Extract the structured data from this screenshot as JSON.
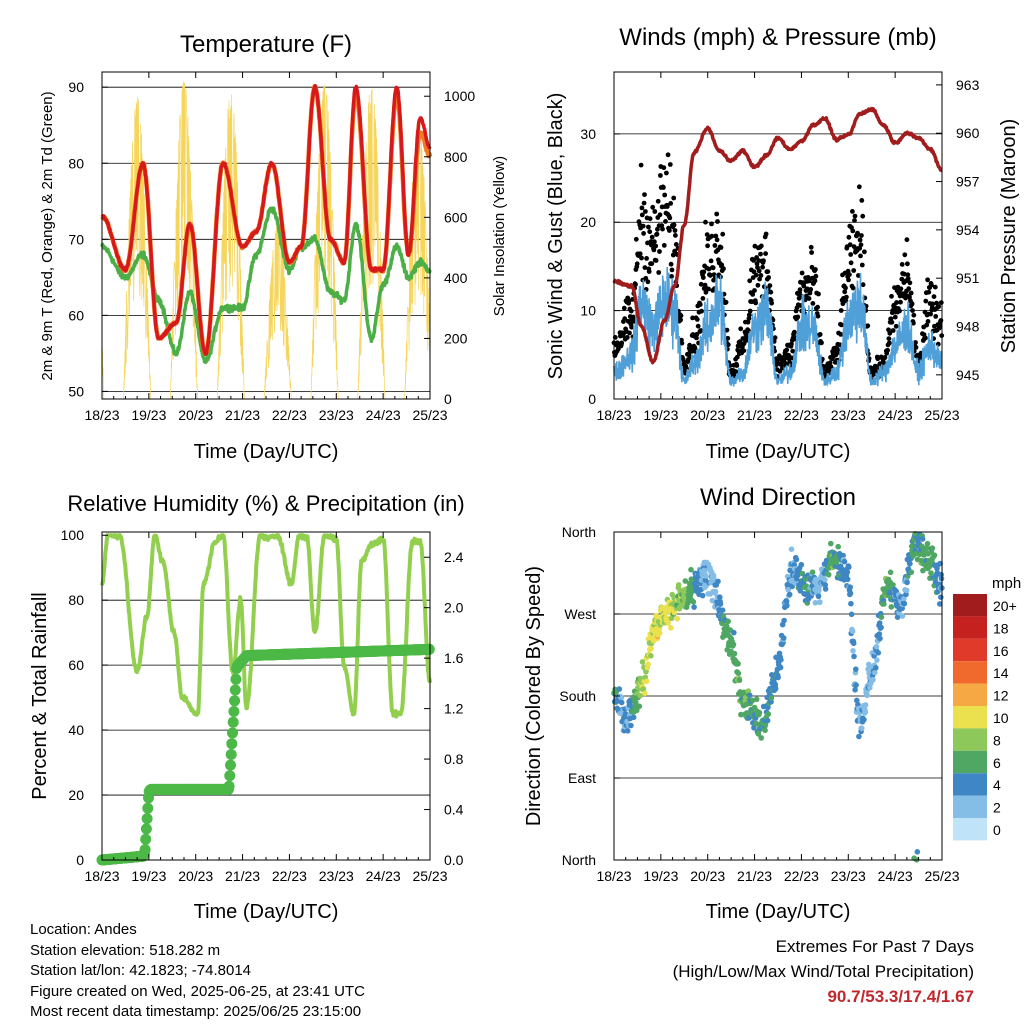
{
  "x_tick_labels": [
    "18/23",
    "19/23",
    "20/23",
    "21/23",
    "22/23",
    "23/23",
    "24/23",
    "25/23"
  ],
  "colors": {
    "temp_2m": "#d7191c",
    "temp_9m": "#f07a22",
    "dewpoint": "#4cae47",
    "solar": "#f5d55b",
    "gust": "#000000",
    "wind": "#4f9fd8",
    "pressure": "#a11c1c",
    "rh": "#92cf4f",
    "precip": "#4cb847",
    "extremes": "#c0282d"
  },
  "speed_colorbar": {
    "title": "mph",
    "labels": [
      "20+",
      "18",
      "16",
      "14",
      "12",
      "10",
      "8",
      "6",
      "4",
      "2",
      "0"
    ],
    "colors": [
      "#a11c1c",
      "#c4211f",
      "#df3a2a",
      "#ef6a2c",
      "#f6a844",
      "#ebe04e",
      "#8cc85a",
      "#4fa763",
      "#3f86c4",
      "#84bde6",
      "#bfe3f7"
    ]
  },
  "charts": [
    {
      "title": "Temperature (F)",
      "xlabel": "Time (Day/UTC)",
      "ylabel": "2m & 9m T (Red, Orange) & 2m Td (Green)",
      "ylabel_right": "Solar Insolation (Yellow)",
      "yticks": [
        "50",
        "60",
        "70",
        "80",
        "90"
      ],
      "yticks_right": [
        "0",
        "200",
        "400",
        "600",
        "800",
        "1000"
      ]
    },
    {
      "title": "Winds (mph) & Pressure (mb)",
      "xlabel": "Time (Day/UTC)",
      "ylabel": "Sonic Wind & Gust (Blue, Black)",
      "ylabel_right": "Station Pressure (Maroon)",
      "yticks": [
        "0",
        "10",
        "20",
        "30"
      ],
      "yticks_right": [
        "945",
        "948",
        "951",
        "954",
        "957",
        "960",
        "963"
      ]
    },
    {
      "title": "Relative Humidity (%) & Precipitation (in)",
      "xlabel": "Time (Day/UTC)",
      "ylabel": "Percent & Total Rainfall",
      "yticks": [
        "0",
        "20",
        "40",
        "60",
        "80",
        "100"
      ],
      "yticks_right": [
        "0.0",
        "0.4",
        "0.8",
        "1.2",
        "1.6",
        "2.0",
        "2.4"
      ]
    },
    {
      "title": "Wind Direction",
      "xlabel": "Time (Day/UTC)",
      "ylabel": "Direction (Colored By Speed)",
      "yticks": [
        "North",
        "East",
        "South",
        "West",
        "North"
      ]
    }
  ],
  "chart_data": [
    {
      "type": "line",
      "title": "Temperature (F)",
      "x_unit": "day/hour UTC",
      "x": [
        "18/23",
        "19/11",
        "19/20",
        "20/04",
        "20/13",
        "20/20",
        "21/04",
        "21/13",
        "21/23",
        "22/06",
        "22/14",
        "22/23",
        "23/05",
        "23/12",
        "23/20",
        "24/03",
        "24/09",
        "24/17",
        "24/23",
        "25/06",
        "25/12",
        "25/18",
        "25/23"
      ],
      "ylim": [
        49,
        92
      ],
      "ylim_right": [
        0,
        1080
      ],
      "series": [
        {
          "name": "2m T",
          "axis": "left",
          "values": [
            73,
            66,
            80,
            57,
            59,
            72,
            55,
            80,
            69,
            71,
            80,
            67,
            69,
            90,
            70,
            67,
            90,
            66,
            66,
            90,
            68,
            86,
            82
          ]
        },
        {
          "name": "9m T",
          "axis": "left",
          "values": [
            73,
            66,
            80,
            57,
            59,
            72,
            55,
            80,
            69,
            71,
            80,
            67,
            69,
            90,
            70,
            67,
            89,
            66,
            66,
            89,
            68,
            84,
            81
          ]
        },
        {
          "name": "2m Td",
          "axis": "left",
          "values": [
            69,
            65,
            68,
            62,
            55,
            63,
            54,
            61,
            61,
            68,
            74,
            66,
            69,
            70,
            63,
            62,
            72,
            57,
            64,
            69,
            65,
            67,
            66
          ]
        },
        {
          "name": "Solar Insolation",
          "axis": "right",
          "peaks": [
            1000,
            1050,
            1010,
            580,
            1040,
            1040,
            930
          ]
        }
      ]
    },
    {
      "type": "scatter",
      "title": "Winds (mph) & Pressure (mb)",
      "x_unit": "day/hour UTC",
      "x": [
        "18/23",
        "19/08",
        "19/13",
        "19/19",
        "20/01",
        "20/06",
        "20/11",
        "20/16",
        "20/23",
        "21/05",
        "21/11",
        "21/17",
        "21/23",
        "22/05",
        "22/11",
        "22/17",
        "22/23",
        "23/05",
        "23/11",
        "23/17",
        "23/23",
        "24/05",
        "24/11",
        "24/17",
        "24/23",
        "25/05",
        "25/11",
        "25/17",
        "25/23"
      ],
      "ylim": [
        0,
        37
      ],
      "ylim_right": [
        943.5,
        963.8
      ],
      "series": [
        {
          "name": "Sonic Wind",
          "axis": "left",
          "values": [
            3,
            5,
            11,
            8,
            11,
            10,
            2,
            4,
            8,
            11,
            2,
            3,
            8,
            10,
            2,
            3,
            8,
            8,
            2,
            3,
            9,
            11,
            2,
            3,
            6,
            8,
            3,
            6,
            4
          ]
        },
        {
          "name": "Gust",
          "axis": "left",
          "values": [
            6,
            9,
            20,
            17,
            22,
            18,
            4,
            7,
            15,
            18,
            3,
            6,
            14,
            15,
            4,
            5,
            12,
            13,
            3,
            5,
            15,
            18,
            3,
            4,
            10,
            14,
            4,
            11,
            9
          ]
        },
        {
          "name": "Station Pressure",
          "axis": "right",
          "values": [
            950.8,
            950.5,
            948.0,
            945.8,
            948.4,
            950.5,
            954.3,
            958.8,
            960.3,
            958.9,
            958.3,
            958.9,
            957.9,
            958.6,
            959.7,
            959.0,
            959.5,
            960.5,
            960.9,
            959.6,
            959.9,
            961.2,
            961.5,
            960.5,
            959.4,
            960.0,
            959.7,
            959.0,
            957.7
          ]
        }
      ]
    },
    {
      "type": "line",
      "title": "Relative Humidity (%) & Precipitation (in)",
      "x_unit": "day/hour UTC",
      "x": [
        "18/23",
        "19/02",
        "19/08",
        "19/17",
        "19/22",
        "20/02",
        "20/06",
        "20/12",
        "20/16",
        "21/00",
        "21/03",
        "21/09",
        "21/13",
        "21/18",
        "21/22",
        "22/01",
        "22/08",
        "22/12",
        "22/17",
        "23/00",
        "23/04",
        "23/08",
        "23/12",
        "23/17",
        "23/23",
        "24/03",
        "24/08",
        "24/12",
        "24/17",
        "24/23",
        "25/04",
        "25/08",
        "25/14",
        "25/18",
        "25/23"
      ],
      "ylim": [
        0,
        101
      ],
      "ylim_right": [
        0,
        2.6
      ],
      "series": [
        {
          "name": "Relative Humidity",
          "axis": "left",
          "values": [
            85,
            100,
            100,
            58,
            75,
            100,
            92,
            70,
            50,
            45,
            85,
            98,
            100,
            58,
            80,
            47,
            100,
            99,
            100,
            85,
            100,
            99,
            70,
            100,
            99,
            60,
            45,
            92,
            97,
            99,
            45,
            45,
            98,
            98,
            55
          ]
        },
        {
          "name": "Total Precipitation",
          "axis": "right",
          "x": [
            "18/23",
            "19/20",
            "19/21",
            "19/23",
            "20/00",
            "21/16",
            "21/17",
            "21/20",
            "22/01",
            "25/23"
          ],
          "values": [
            0.0,
            0.03,
            0.07,
            0.54,
            0.56,
            0.56,
            0.8,
            1.53,
            1.62,
            1.67
          ]
        }
      ]
    },
    {
      "type": "scatter",
      "title": "Wind Direction",
      "x_unit": "day/hour UTC",
      "y_unit": "degrees (North=0, East=90, South=180, West=270, North=360)",
      "ylim": [
        0,
        360
      ],
      "x": [
        "18/23",
        "19/06",
        "19/14",
        "19/20",
        "20/03",
        "20/08",
        "21/00",
        "21/10",
        "21/18",
        "22/03",
        "22/10",
        "22/18",
        "23/01",
        "23/08",
        "23/15",
        "23/22",
        "24/05",
        "24/10",
        "24/19",
        "25/02",
        "25/09",
        "25/16",
        "25/23"
      ],
      "direction": [
        180,
        155,
        200,
        255,
        275,
        285,
        310,
        240,
        175,
        150,
        200,
        320,
        300,
        300,
        330,
        320,
        150,
        200,
        300,
        280,
        350,
        330,
        300
      ],
      "speed": [
        4,
        3,
        9,
        10,
        9,
        8,
        2,
        6,
        6,
        5,
        4,
        3,
        5,
        2,
        6,
        4,
        3,
        2,
        6,
        3,
        5,
        6,
        4
      ]
    }
  ],
  "info": {
    "location": "Location: Andes",
    "elevation": "Station elevation: 518.282 m",
    "latlon": "Station lat/lon: 42.1823; -74.8014",
    "created": "Figure created on Wed, 2025-06-25, at 23:41 UTC",
    "recent": "Most recent data timestamp: 2025/06/25 23:15:00"
  },
  "extremes": {
    "title": "Extremes For Past 7 Days",
    "subtitle": "(High/Low/Max Wind/Total Precipitation)",
    "values": "90.7/53.3/17.4/1.67"
  }
}
